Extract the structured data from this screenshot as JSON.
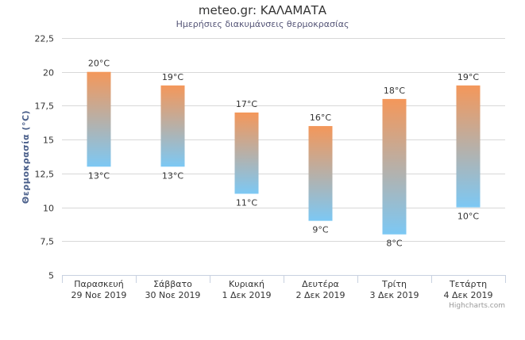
{
  "chart_data": {
    "type": "columnrange",
    "title": "meteo.gr: ΚΑΛΑΜΑΤΑ",
    "subtitle": "Ημερήσιες διακυμάνσεις θερμοκρασίας",
    "ylabel": "Θερμοκρασία (°C)",
    "ylim": [
      5,
      22.5
    ],
    "y_ticks": [
      "5",
      "7,5",
      "10",
      "12,5",
      "15",
      "17,5",
      "20",
      "22,5"
    ],
    "grid": true,
    "categories": [
      [
        "Παρασκευή",
        "29 Νοε 2019"
      ],
      [
        "Σάββατο",
        "30 Νοε 2019"
      ],
      [
        "Κυριακή",
        "1 Δεκ 2019"
      ],
      [
        "Δευτέρα",
        "2 Δεκ 2019"
      ],
      [
        "Τρίτη",
        "3 Δεκ 2019"
      ],
      [
        "Τετάρτη",
        "4 Δεκ 2019"
      ]
    ],
    "lows": [
      13,
      13,
      11,
      9,
      8,
      10
    ],
    "highs": [
      20,
      19,
      17,
      16,
      18,
      19
    ],
    "low_labels": [
      "13°C",
      "13°C",
      "11°C",
      "9°C",
      "8°C",
      "10°C"
    ],
    "high_labels": [
      "20°C",
      "19°C",
      "17°C",
      "16°C",
      "18°C",
      "19°C"
    ],
    "colors": {
      "warm": "#f4975a",
      "cold": "#7cc8f4"
    },
    "credits": "Highcharts.com"
  }
}
